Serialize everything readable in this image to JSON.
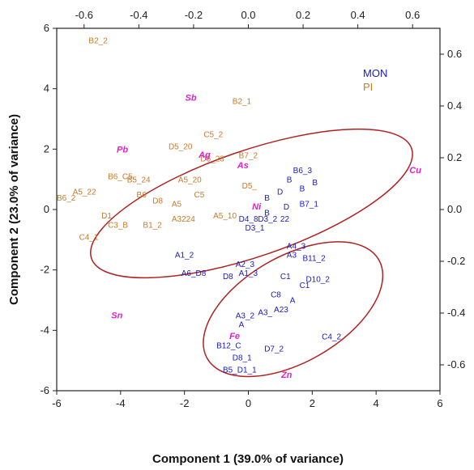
{
  "chart_data": {
    "type": "scatter",
    "title": "",
    "xlabel": "Component 1 (39.0% of variance)",
    "ylabel": "Component 2 (23.0% of variance)",
    "xlim": [
      -6,
      6
    ],
    "ylim": [
      -6,
      6
    ],
    "x_ticks": [
      -6,
      -4,
      -2,
      0,
      2,
      4,
      6
    ],
    "y_ticks": [
      -6,
      -4,
      -2,
      0,
      2,
      4,
      6
    ],
    "top_xlim": [
      -0.7,
      0.7
    ],
    "top_x_ticks": [
      -0.6,
      -0.4,
      -0.2,
      0.0,
      0.2,
      0.4,
      0.6
    ],
    "top_x_tick_labels": [
      "-0.6",
      "-0.4",
      "-0.2",
      "0.0",
      "0.2",
      "0.4",
      "0.6"
    ],
    "right_ylim": [
      -0.7,
      0.7
    ],
    "right_y_ticks": [
      -0.6,
      -0.4,
      -0.2,
      0.0,
      0.2,
      0.4,
      0.6
    ],
    "right_y_tick_labels": [
      "-0.6",
      "-0.4",
      "-0.2",
      "0.0",
      "0.2",
      "0.4",
      "0.6"
    ],
    "legend": {
      "position": "top-right",
      "entries": [
        {
          "name": "MON",
          "color": "#1a1ab8"
        },
        {
          "name": "PI",
          "color": "#c87a2a"
        }
      ]
    },
    "colors": {
      "MON": "#1a1ab8",
      "PI": "#c87a2a",
      "variables": "#e020c8",
      "ellipse": "#b02020"
    },
    "series": [
      {
        "name": "MON",
        "color": "#1a1ab8",
        "points": [
          {
            "x": 1.4,
            "y": 1.2,
            "label": "B6_3"
          },
          {
            "x": 1.2,
            "y": 0.9,
            "label": "B"
          },
          {
            "x": 1.6,
            "y": 0.6,
            "label": "B"
          },
          {
            "x": 2.0,
            "y": 0.8,
            "label": "B"
          },
          {
            "x": 0.5,
            "y": 0.3,
            "label": "B"
          },
          {
            "x": 0.9,
            "y": 0.5,
            "label": "D"
          },
          {
            "x": 1.1,
            "y": 0.0,
            "label": "D"
          },
          {
            "x": 1.6,
            "y": 0.1,
            "label": "B7_1"
          },
          {
            "x": 0.3,
            "y": -0.4,
            "label": "D3_2"
          },
          {
            "x": -0.3,
            "y": -0.4,
            "label": "D4_8"
          },
          {
            "x": -0.1,
            "y": -0.7,
            "label": "D3_1"
          },
          {
            "x": 0.5,
            "y": -0.2,
            "label": "B"
          },
          {
            "x": 1.0,
            "y": -0.4,
            "label": "22"
          },
          {
            "x": -2.3,
            "y": -1.6,
            "label": "A1_2"
          },
          {
            "x": -2.1,
            "y": -2.2,
            "label": "A6_D8"
          },
          {
            "x": -0.8,
            "y": -2.3,
            "label": "D8"
          },
          {
            "x": -0.4,
            "y": -1.9,
            "label": "A2_3"
          },
          {
            "x": -0.3,
            "y": -2.2,
            "label": "A1_3"
          },
          {
            "x": 1.2,
            "y": -1.3,
            "label": "A4_3"
          },
          {
            "x": 1.2,
            "y": -1.6,
            "label": "A3"
          },
          {
            "x": 1.7,
            "y": -1.7,
            "label": "B11_2"
          },
          {
            "x": 1.0,
            "y": -2.3,
            "label": "C1"
          },
          {
            "x": 1.8,
            "y": -2.4,
            "label": "D10_2"
          },
          {
            "x": 0.7,
            "y": -2.9,
            "label": "C8"
          },
          {
            "x": 1.6,
            "y": -2.6,
            "label": "C1"
          },
          {
            "x": 1.3,
            "y": -3.1,
            "label": "A"
          },
          {
            "x": 0.3,
            "y": -3.5,
            "label": "A3_"
          },
          {
            "x": 0.8,
            "y": -3.4,
            "label": "A23"
          },
          {
            "x": -0.4,
            "y": -3.6,
            "label": "A3_2"
          },
          {
            "x": -0.3,
            "y": -3.9,
            "label": "A"
          },
          {
            "x": 2.3,
            "y": -4.3,
            "label": "C4_2"
          },
          {
            "x": -1.0,
            "y": -4.6,
            "label": "B12_C"
          },
          {
            "x": 0.5,
            "y": -4.7,
            "label": "D7_2"
          },
          {
            "x": -0.5,
            "y": -5.0,
            "label": "D8_1"
          },
          {
            "x": -0.8,
            "y": -5.4,
            "label": "B5_D1_1"
          }
        ]
      },
      {
        "name": "PI",
        "color": "#c87a2a",
        "points": [
          {
            "x": -5.0,
            "y": 5.5,
            "label": "B2_2"
          },
          {
            "x": -0.5,
            "y": 3.5,
            "label": "B2_1"
          },
          {
            "x": -1.4,
            "y": 2.4,
            "label": "C5_2"
          },
          {
            "x": -2.5,
            "y": 2.0,
            "label": "D5_20"
          },
          {
            "x": -1.5,
            "y": 1.6,
            "label": "D5_23"
          },
          {
            "x": -0.3,
            "y": 1.7,
            "label": "B7_2"
          },
          {
            "x": -4.4,
            "y": 1.0,
            "label": "B6_C5"
          },
          {
            "x": -3.8,
            "y": 0.9,
            "label": "B5_24"
          },
          {
            "x": -2.2,
            "y": 0.9,
            "label": "A5_20"
          },
          {
            "x": -1.7,
            "y": 0.4,
            "label": "C5"
          },
          {
            "x": -5.5,
            "y": 0.5,
            "label": "A5_22"
          },
          {
            "x": -6.0,
            "y": 0.3,
            "label": "B6_2"
          },
          {
            "x": -3.5,
            "y": 0.4,
            "label": "B6"
          },
          {
            "x": -3.0,
            "y": 0.2,
            "label": "D8"
          },
          {
            "x": -2.4,
            "y": 0.1,
            "label": "A5"
          },
          {
            "x": -4.6,
            "y": -0.3,
            "label": "D1"
          },
          {
            "x": -4.4,
            "y": -0.6,
            "label": "C3_B"
          },
          {
            "x": -3.3,
            "y": -0.6,
            "label": "B1_2"
          },
          {
            "x": -2.4,
            "y": -0.4,
            "label": "A3224"
          },
          {
            "x": -1.1,
            "y": -0.3,
            "label": "A5_10"
          },
          {
            "x": -0.2,
            "y": 0.7,
            "label": "D5_"
          },
          {
            "x": -5.3,
            "y": -1.0,
            "label": "C4_1"
          }
        ]
      }
    ],
    "variables": [
      {
        "name": "Pb",
        "x": -0.46,
        "y": 0.22
      },
      {
        "name": "Sb",
        "x": -0.21,
        "y": 0.42
      },
      {
        "name": "Ag",
        "x": -0.16,
        "y": 0.2
      },
      {
        "name": "As",
        "x": -0.02,
        "y": 0.16
      },
      {
        "name": "Ni",
        "x": 0.03,
        "y": 0.0
      },
      {
        "name": "Cu",
        "x": 0.61,
        "y": 0.14
      },
      {
        "name": "Sn",
        "x": -0.48,
        "y": -0.42
      },
      {
        "name": "Fe",
        "x": -0.05,
        "y": -0.5
      },
      {
        "name": "Zn",
        "x": 0.14,
        "y": -0.65
      }
    ],
    "ellipses": [
      {
        "group": "PI",
        "cx": 0.1,
        "cy": 0.2,
        "rx": 5.3,
        "ry": 1.75,
        "angle_deg": 19
      },
      {
        "group": "MON",
        "cx": 1.4,
        "cy": -3.3,
        "rx": 3.1,
        "ry": 1.75,
        "angle_deg": 30
      }
    ]
  }
}
